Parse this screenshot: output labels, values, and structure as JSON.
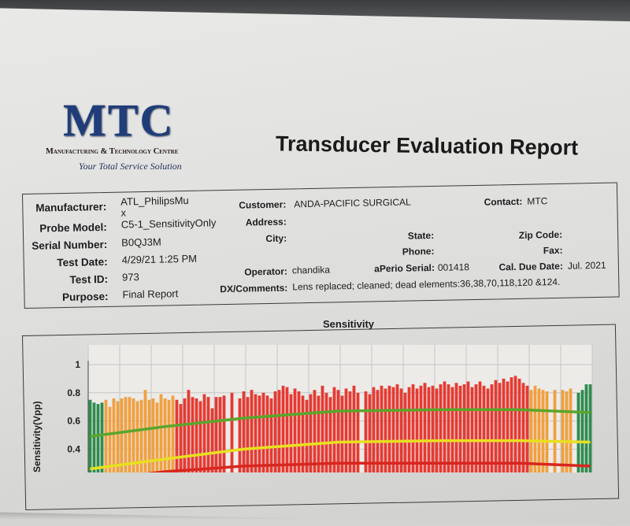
{
  "logo": {
    "brand": "MTC",
    "full_name": "Manufacturing & Technology Centre",
    "tagline": "Your Total Service Solution"
  },
  "report_title": "Transducer Evaluation Report",
  "info": {
    "manufacturer": {
      "label": "Manufacturer:",
      "value": "ATL_PhilipsMu",
      "value_wrap": "x"
    },
    "probe_model": {
      "label": "Probe Model:",
      "value": "C5-1_SensitivityOnly"
    },
    "serial_number": {
      "label": "Serial Number:",
      "value": "B0QJ3M"
    },
    "test_date": {
      "label": "Test Date:",
      "value": "4/29/21 1:25 PM"
    },
    "test_id": {
      "label": "Test ID:",
      "value": "973"
    },
    "purpose": {
      "label": "Purpose:",
      "value": "Final Report"
    },
    "customer": {
      "label": "Customer:",
      "value": "ANDA-PACIFIC SURGICAL"
    },
    "contact": {
      "label": "Contact:",
      "value": "MTC"
    },
    "address": {
      "label": "Address:",
      "value": ""
    },
    "city": {
      "label": "City:",
      "value": ""
    },
    "state": {
      "label": "State:",
      "value": ""
    },
    "zip": {
      "label": "Zip Code:",
      "value": ""
    },
    "phone": {
      "label": "Phone:",
      "value": ""
    },
    "fax": {
      "label": "Fax:",
      "value": ""
    },
    "operator": {
      "label": "Operator:",
      "value": "chandika"
    },
    "aperio_serial": {
      "label": "aPerio Serial:",
      "value": "001418"
    },
    "cal_due": {
      "label": "Cal. Due Date:",
      "value": "Jul. 2021"
    },
    "comments": {
      "label": "DX/Comments:",
      "value": "Lens replaced; cleaned; dead elements:36,38,70,118,120 &124."
    }
  },
  "chart_data": {
    "type": "bar",
    "title": "Sensitivity",
    "ylabel": "Sensitivity(Vpp)",
    "ylim": [
      0,
      1
    ],
    "yticks": [
      "1",
      "0.8",
      "0.6",
      "0.4"
    ],
    "grid": true,
    "values": [
      0.75,
      0.73,
      0.72,
      0.73,
      0.75,
      0.7,
      0.76,
      0.74,
      0.76,
      0.77,
      0.77,
      0.76,
      0.74,
      0.75,
      0.82,
      0.75,
      0.76,
      0.73,
      0.79,
      0.76,
      0.75,
      0.78,
      0.75,
      0.72,
      0.76,
      0.82,
      0.77,
      0.76,
      0.74,
      0.79,
      0.77,
      0.69,
      0.77,
      0.77,
      0.78,
      0,
      0.8,
      0,
      0.76,
      0.81,
      0.77,
      0.82,
      0.79,
      0.78,
      0.8,
      0.78,
      0.76,
      0.81,
      0.82,
      0.85,
      0.84,
      0.79,
      0.83,
      0.81,
      0.78,
      0.75,
      0.79,
      0.82,
      0.78,
      0.85,
      0.8,
      0.77,
      0.84,
      0.82,
      0.78,
      0.83,
      0.81,
      0.85,
      0.8,
      0,
      0.81,
      0.79,
      0.84,
      0.82,
      0.85,
      0.83,
      0.85,
      0.84,
      0.86,
      0.83,
      0.8,
      0.84,
      0.86,
      0.83,
      0.85,
      0.87,
      0.84,
      0.85,
      0.83,
      0.86,
      0.88,
      0.86,
      0.84,
      0.87,
      0.85,
      0.86,
      0.88,
      0.84,
      0.86,
      0.88,
      0.85,
      0.83,
      0.86,
      0.89,
      0.87,
      0.9,
      0.88,
      0.91,
      0.92,
      0.9,
      0.87,
      0.85,
      0.82,
      0.85,
      0.83,
      0.82,
      0.81,
      0,
      0.82,
      0,
      0.82,
      0.81,
      0.83,
      0,
      0.8,
      0.82,
      0.86,
      0.86
    ],
    "bar_color_ranges": [
      {
        "from": 1,
        "to": 4,
        "color": "#2e8b4e"
      },
      {
        "from": 5,
        "to": 22,
        "color": "#f0a040"
      },
      {
        "from": 23,
        "to": 112,
        "color": "#e53a32"
      },
      {
        "from": 113,
        "to": 124,
        "color": "#f0a040"
      },
      {
        "from": 125,
        "to": 128,
        "color": "#2e8b4e"
      }
    ],
    "limit_lines": {
      "x": [
        1,
        20,
        40,
        64,
        90,
        110,
        128
      ],
      "series": [
        {
          "color": "#5aa62c",
          "values": [
            0.49,
            0.56,
            0.62,
            0.67,
            0.68,
            0.68,
            0.66
          ]
        },
        {
          "color": "#e8e020",
          "values": [
            0.26,
            0.33,
            0.4,
            0.45,
            0.46,
            0.46,
            0.45
          ]
        },
        {
          "color": "#d8261e",
          "values": [
            0.18,
            0.24,
            0.28,
            0.3,
            0.3,
            0.3,
            0.28
          ]
        }
      ]
    }
  }
}
